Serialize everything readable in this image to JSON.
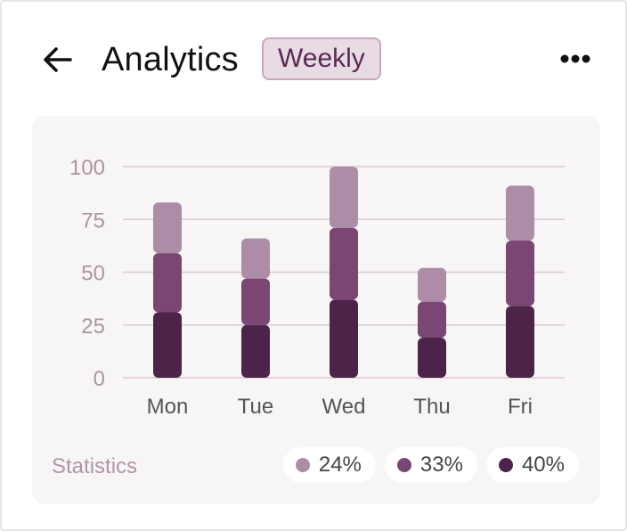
{
  "header": {
    "title": "Analytics",
    "badge": "Weekly",
    "back_icon": "arrow-left-icon",
    "more_icon": "more-horizontal-icon"
  },
  "colors": {
    "light": "#ad8ca8",
    "mid": "#7a4673",
    "dark": "#4d2449",
    "grid": "#d9c9d2",
    "tick": "#ad959f",
    "xtick": "#555555"
  },
  "chart_data": {
    "type": "bar",
    "stacked": true,
    "categories": [
      "Mon",
      "Tue",
      "Wed",
      "Thu",
      "Fri"
    ],
    "series": [
      {
        "name": "dark",
        "values": [
          31,
          25,
          37,
          19,
          34
        ]
      },
      {
        "name": "mid",
        "values": [
          28,
          22,
          34,
          17,
          31
        ]
      },
      {
        "name": "light",
        "values": [
          24,
          19,
          29,
          16,
          26
        ]
      }
    ],
    "yticks": [
      0,
      25,
      50,
      75,
      100
    ],
    "ylim": [
      0,
      100
    ],
    "grid": true
  },
  "footer": {
    "label": "Statistics",
    "legend": [
      {
        "label": "24%",
        "color_key": "light"
      },
      {
        "label": "33%",
        "color_key": "mid"
      },
      {
        "label": "40%",
        "color_key": "dark"
      }
    ]
  }
}
